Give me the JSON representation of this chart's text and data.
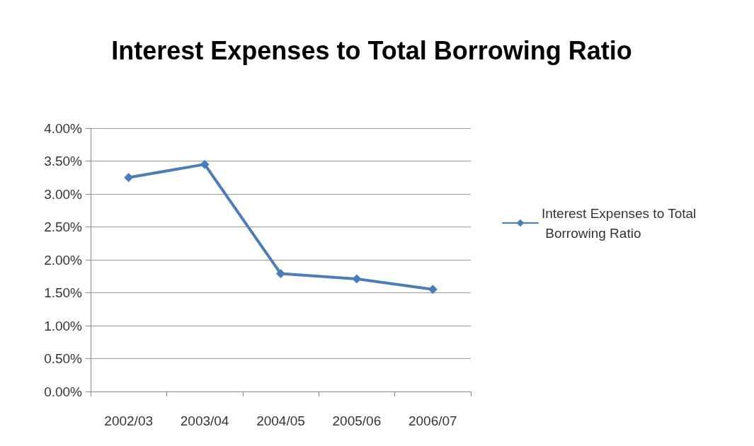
{
  "chart_data": {
    "type": "line",
    "title": "Interest Expenses to Total Borrowing Ratio",
    "categories": [
      "2002/03",
      "2003/04",
      "2004/05",
      "2005/06",
      "2006/07"
    ],
    "series": [
      {
        "name": "Interest Expenses to Total Borrowing Ratio",
        "color": "#4a7ebb",
        "values": [
          3.25,
          3.45,
          1.79,
          1.71,
          1.55
        ]
      }
    ],
    "ylim": [
      0,
      4
    ],
    "yticks": [
      {
        "value": 0,
        "label": "0.00%"
      },
      {
        "value": 0.5,
        "label": "0.50%"
      },
      {
        "value": 1,
        "label": "1.00%"
      },
      {
        "value": 1.5,
        "label": "1.50%"
      },
      {
        "value": 2,
        "label": "2.00%"
      },
      {
        "value": 2.5,
        "label": "2.50%"
      },
      {
        "value": 3,
        "label": "3.00%"
      },
      {
        "value": 3.5,
        "label": "3.50%"
      },
      {
        "value": 4,
        "label": "4.00%"
      }
    ],
    "grid": "y",
    "legend": "right",
    "marker": "diamond",
    "line_style": "solid"
  }
}
